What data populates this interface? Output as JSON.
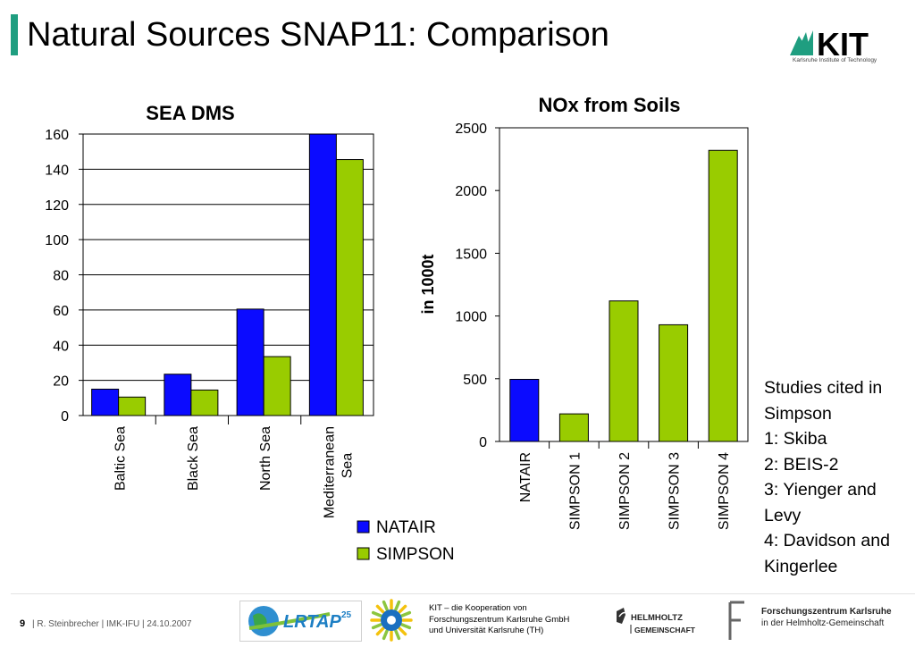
{
  "slide": {
    "title": "Natural Sources SNAP11: Comparison",
    "logo_text": "KIT",
    "logo_subtitle": "Karlsruhe Institute of Technology"
  },
  "chart_data": [
    {
      "type": "bar",
      "title": "SEA DMS",
      "xlabel": "",
      "ylabel": "",
      "categories": [
        "Baltic Sea",
        "Black Sea",
        "North Sea",
        "Mediterranean Sea"
      ],
      "series": [
        {
          "name": "NATAIR",
          "values": [
            15,
            23.5,
            60.5,
            161
          ],
          "color": "#0b0bff"
        },
        {
          "name": "SIMPSON",
          "values": [
            10.5,
            14.5,
            33.5,
            145.5
          ],
          "color": "#99cc00"
        }
      ],
      "ylim": [
        0,
        160
      ],
      "yticks": [
        "0",
        "20",
        "40",
        "60",
        "80",
        "100",
        "120",
        "140",
        "160"
      ],
      "grid": true,
      "legend_position": "bottom-right"
    },
    {
      "type": "bar",
      "title": "NOx from Soils",
      "xlabel": "",
      "ylabel": "in 1000t",
      "categories": [
        "NATAIR",
        "SIMPSON 1",
        "SIMPSON 2",
        "SIMPSON 3",
        "SIMPSON 4"
      ],
      "values": [
        495,
        220,
        1120,
        930,
        2320
      ],
      "colors": [
        "#0b0bff",
        "#99cc00",
        "#99cc00",
        "#99cc00",
        "#99cc00"
      ],
      "ylim": [
        0,
        2500
      ],
      "yticks": [
        "0",
        "500",
        "1000",
        "1500",
        "2000",
        "2500"
      ],
      "grid": false
    }
  ],
  "studies": {
    "heading": "Studies cited in Simpson",
    "items": [
      "1: Skiba",
      "2: BEIS-2",
      "3: Yienger and Levy",
      "4: Davidson and Kingerlee"
    ]
  },
  "footer": {
    "page_number": "9",
    "text": "| R. Steinbrecher | IMK-IFU | 24.10.2007",
    "lrtap_logo": "LRTAP",
    "lrtap_badge": "25",
    "kit_coop_lines": [
      "KIT – die Kooperation von",
      "Forschungszentrum Karlsruhe GmbH",
      "und Universität Karlsruhe (TH)"
    ],
    "helmholtz_line1": "HELMHOLTZ",
    "helmholtz_line2": "GEMEINSCHAFT",
    "fzk_line1": "Forschungszentrum Karlsruhe",
    "fzk_line2": "in der Helmholtz-Gemeinschaft"
  },
  "colors": {
    "accent": "#1f9e80",
    "natair": "#0b0bff",
    "simpson": "#99cc00"
  }
}
